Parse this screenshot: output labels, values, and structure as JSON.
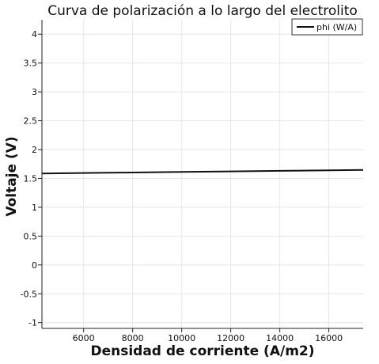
{
  "chart_data": {
    "type": "line",
    "title": "Curva de polarización a lo largo del electrolito",
    "xlabel": "Densidad de corriente (A/m2)",
    "ylabel": "Voltaje (V)",
    "xlim": [
      4300,
      17400
    ],
    "ylim": [
      -1.1,
      4.25
    ],
    "x_ticks": [
      6000,
      8000,
      10000,
      12000,
      14000,
      16000
    ],
    "x_tick_labels": [
      "6000",
      "8000",
      "10000",
      "12000",
      "14000",
      "16000"
    ],
    "y_ticks": [
      -1,
      -0.5,
      0,
      0.5,
      1,
      1.5,
      2,
      2.5,
      3,
      3.5,
      4
    ],
    "y_tick_labels": [
      "-1",
      "-0.5",
      "0",
      "0.5",
      "1",
      "1.5",
      "2",
      "2.5",
      "3",
      "3.5",
      "4"
    ],
    "grid": true,
    "legend_position": "top-right",
    "series": [
      {
        "name": "phi (W/A)",
        "color": "#111111",
        "x": [
          4300,
          6000,
          8000,
          10000,
          12000,
          14000,
          16000,
          17400
        ],
        "y": [
          1.585,
          1.594,
          1.603,
          1.612,
          1.622,
          1.631,
          1.64,
          1.646
        ]
      }
    ]
  }
}
